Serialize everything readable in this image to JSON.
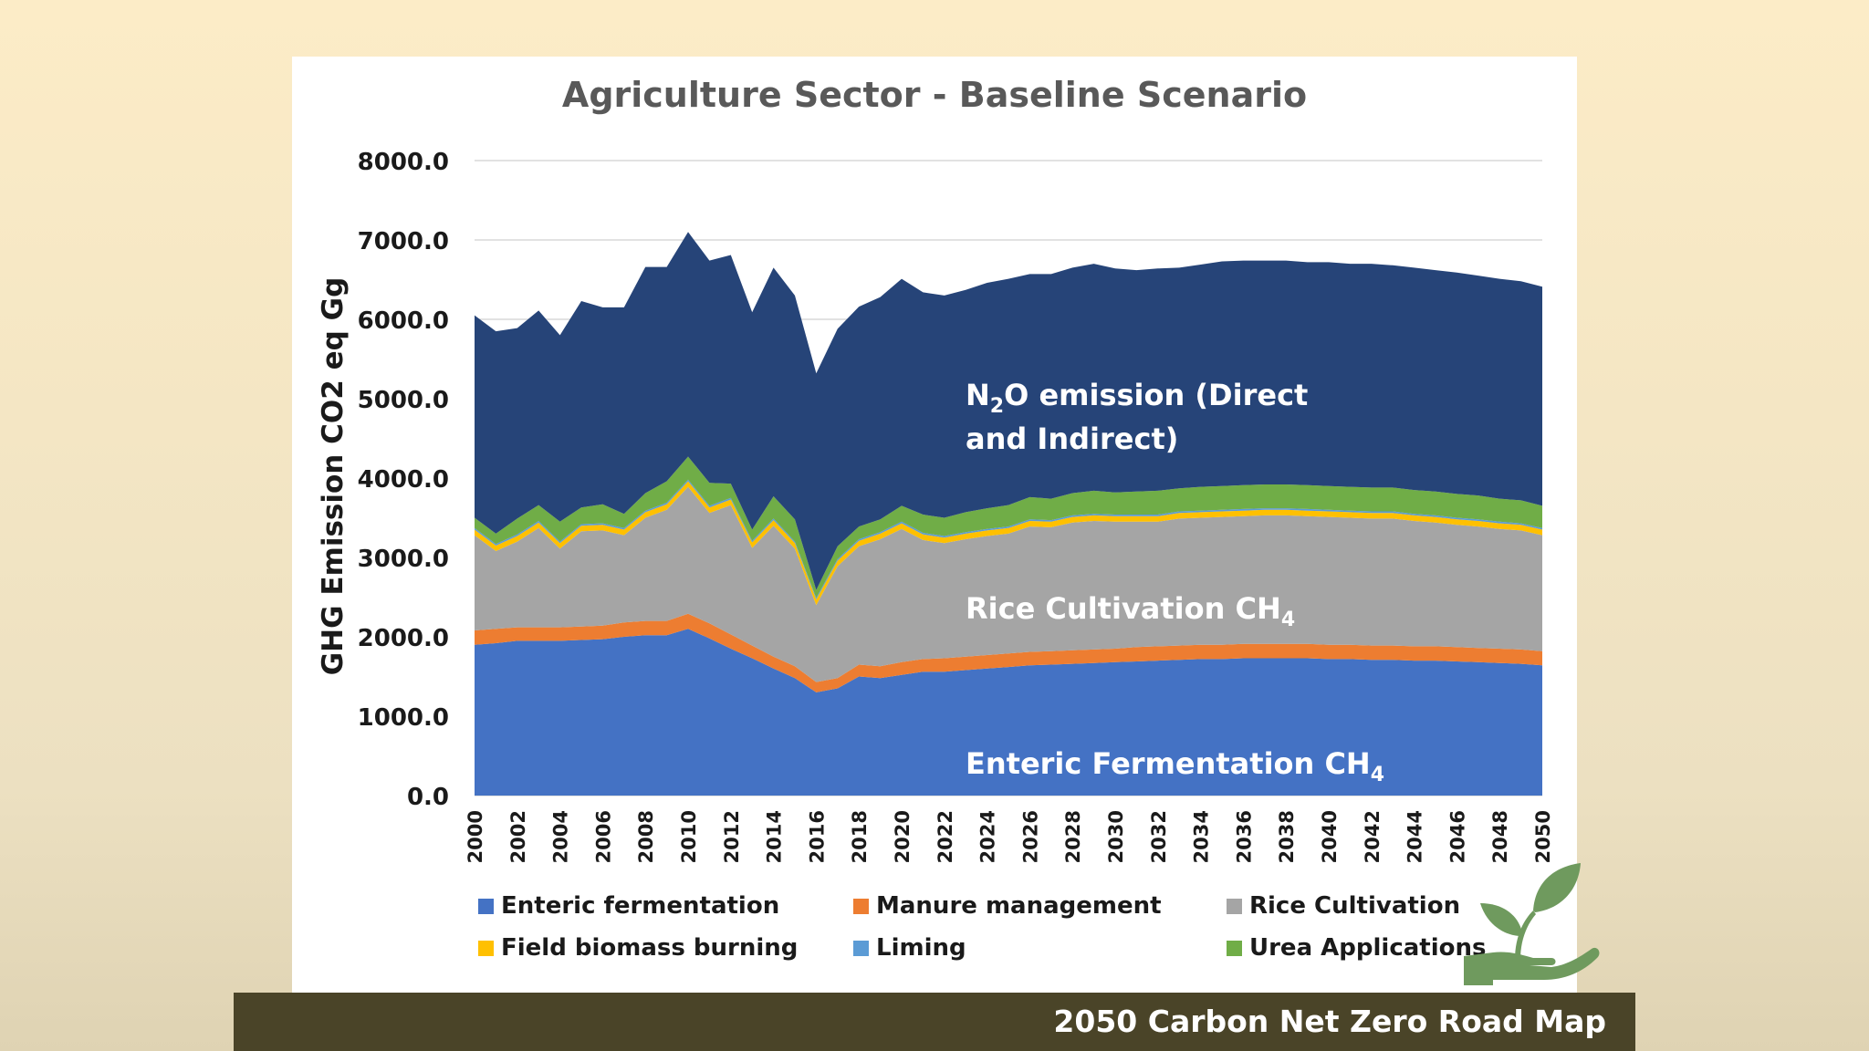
{
  "footer": {
    "text": "2050 Carbon Net Zero Road Map"
  },
  "colors": {
    "enteric": "#4472c4",
    "manure": "#ed7d31",
    "rice": "#a5a5a5",
    "field": "#ffc000",
    "liming": "#5b9bd5",
    "urea": "#70ad47",
    "n2o": "#264478",
    "logo": "#6f9a5e"
  },
  "logo_icon": "plant-in-hand-icon",
  "chart_data": {
    "type": "area",
    "stacked": true,
    "title": "Agriculture Sector - Baseline Scenario",
    "ylabel": "GHG Emission CO2 eq Gg",
    "ylim": [
      0,
      8000
    ],
    "yticks": [
      "0.0",
      "1000.0",
      "2000.0",
      "3000.0",
      "4000.0",
      "5000.0",
      "6000.0",
      "7000.0",
      "8000.0"
    ],
    "grid": true,
    "legend_position": "bottom",
    "x": [
      2000,
      2001,
      2002,
      2003,
      2004,
      2005,
      2006,
      2007,
      2008,
      2009,
      2010,
      2011,
      2012,
      2013,
      2014,
      2015,
      2016,
      2017,
      2018,
      2019,
      2020,
      2021,
      2022,
      2023,
      2024,
      2025,
      2026,
      2027,
      2028,
      2029,
      2030,
      2031,
      2032,
      2033,
      2034,
      2035,
      2036,
      2037,
      2038,
      2039,
      2040,
      2041,
      2042,
      2043,
      2044,
      2045,
      2046,
      2047,
      2048,
      2049,
      2050
    ],
    "xticks": [
      "2000",
      "2002",
      "2004",
      "2006",
      "2008",
      "2010",
      "2012",
      "2014",
      "2016",
      "2018",
      "2020",
      "2022",
      "2024",
      "2026",
      "2028",
      "2030",
      "2032",
      "2034",
      "2036",
      "2038",
      "2040",
      "2042",
      "2044",
      "2046",
      "2048",
      "2050"
    ],
    "series": [
      {
        "name": "Enteric fermentation",
        "color_key": "enteric",
        "values": [
          1900,
          1920,
          1950,
          1950,
          1950,
          1960,
          1970,
          2000,
          2020,
          2020,
          2100,
          1980,
          1850,
          1730,
          1600,
          1480,
          1300,
          1350,
          1500,
          1480,
          1520,
          1560,
          1560,
          1580,
          1600,
          1620,
          1640,
          1650,
          1660,
          1670,
          1680,
          1690,
          1700,
          1710,
          1720,
          1720,
          1730,
          1730,
          1730,
          1730,
          1720,
          1720,
          1710,
          1710,
          1700,
          1700,
          1690,
          1680,
          1670,
          1660,
          1640
        ]
      },
      {
        "name": "Manure management",
        "color_key": "manure",
        "values": [
          180,
          180,
          170,
          170,
          170,
          170,
          170,
          180,
          180,
          180,
          190,
          190,
          180,
          160,
          150,
          150,
          130,
          130,
          150,
          150,
          160,
          160,
          170,
          170,
          170,
          170,
          170,
          170,
          170,
          170,
          170,
          180,
          180,
          180,
          180,
          180,
          180,
          180,
          180,
          180,
          180,
          180,
          180,
          180,
          180,
          180,
          180,
          180,
          180,
          180,
          180
        ]
      },
      {
        "name": "Rice Cultivation",
        "color_key": "rice",
        "values": [
          1200,
          980,
          1080,
          1250,
          990,
          1200,
          1200,
          1100,
          1300,
          1400,
          1600,
          1390,
          1630,
          1230,
          1650,
          1480,
          970,
          1410,
          1490,
          1600,
          1680,
          1500,
          1450,
          1480,
          1500,
          1510,
          1580,
          1560,
          1610,
          1620,
          1600,
          1580,
          1570,
          1600,
          1600,
          1610,
          1610,
          1620,
          1620,
          1610,
          1610,
          1600,
          1600,
          1600,
          1580,
          1560,
          1540,
          1530,
          1510,
          1500,
          1460
        ]
      },
      {
        "name": "Field biomass burning",
        "color_key": "field",
        "values": [
          70,
          70,
          70,
          70,
          70,
          70,
          70,
          70,
          70,
          70,
          70,
          70,
          70,
          70,
          70,
          70,
          70,
          70,
          70,
          70,
          70,
          70,
          70,
          70,
          70,
          70,
          70,
          70,
          70,
          70,
          70,
          70,
          70,
          70,
          70,
          70,
          70,
          70,
          70,
          70,
          70,
          70,
          70,
          70,
          70,
          70,
          70,
          70,
          70,
          70,
          70
        ]
      },
      {
        "name": "Liming",
        "color_key": "liming",
        "values": [
          20,
          20,
          20,
          20,
          20,
          20,
          20,
          20,
          20,
          20,
          20,
          20,
          20,
          20,
          20,
          20,
          20,
          20,
          20,
          20,
          20,
          20,
          20,
          20,
          20,
          20,
          20,
          20,
          20,
          20,
          20,
          20,
          20,
          20,
          20,
          20,
          20,
          20,
          20,
          20,
          20,
          20,
          20,
          20,
          20,
          20,
          20,
          20,
          20,
          20,
          20
        ]
      },
      {
        "name": "Urea Applications",
        "color_key": "urea",
        "values": [
          130,
          130,
          200,
          200,
          250,
          210,
          240,
          180,
          220,
          270,
          290,
          290,
          180,
          140,
          280,
          280,
          100,
          160,
          160,
          160,
          200,
          230,
          230,
          250,
          260,
          270,
          280,
          270,
          280,
          290,
          280,
          290,
          300,
          290,
          300,
          300,
          300,
          300,
          300,
          300,
          300,
          300,
          300,
          300,
          300,
          300,
          300,
          300,
          290,
          290,
          280
        ]
      },
      {
        "name": "N2O emission (Direct and Indirect)",
        "color_key": "n2o",
        "values": [
          2550,
          2550,
          2400,
          2450,
          2350,
          2600,
          2480,
          2600,
          2850,
          2700,
          2830,
          2800,
          2880,
          2740,
          2880,
          2820,
          2730,
          2740,
          2770,
          2800,
          2860,
          2800,
          2800,
          2800,
          2840,
          2850,
          2810,
          2830,
          2840,
          2860,
          2820,
          2790,
          2800,
          2780,
          2800,
          2830,
          2830,
          2820,
          2820,
          2810,
          2820,
          2810,
          2820,
          2800,
          2800,
          2790,
          2790,
          2770,
          2770,
          2760,
          2760
        ]
      }
    ],
    "annotations": [
      {
        "id": "n2o",
        "line1_parts": [
          "N",
          "2",
          "O emission (Direct"
        ],
        "line2": "and Indirect)"
      },
      {
        "id": "rice",
        "parts": [
          "Rice Cultivation CH",
          "4"
        ]
      },
      {
        "id": "enteric",
        "parts": [
          "Enteric Fermentation CH",
          "4"
        ]
      }
    ]
  }
}
